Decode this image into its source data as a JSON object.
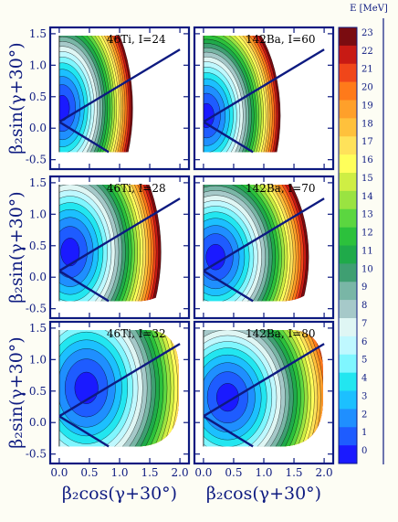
{
  "chart_data": {
    "type": "heatmap",
    "panels": [
      {
        "label": "46Ti, I=24",
        "row": 0,
        "col": 0,
        "cx": 0.05,
        "cy": 0.32,
        "sx": 0.62,
        "sy": 1.05
      },
      {
        "label": "142Ba, I=60",
        "row": 0,
        "col": 1,
        "cx": 0.05,
        "cy": 0.2,
        "sx": 0.65,
        "sy": 1.0
      },
      {
        "label": "46Ti, I=28",
        "row": 1,
        "col": 0,
        "cx": 0.18,
        "cy": 0.4,
        "sx": 0.8,
        "sy": 1.15
      },
      {
        "label": "142Ba, I=70",
        "row": 1,
        "col": 1,
        "cx": 0.2,
        "cy": 0.32,
        "sx": 0.82,
        "sy": 1.05
      },
      {
        "label": "46Ti, I=32",
        "row": 2,
        "col": 0,
        "cx": 0.45,
        "cy": 0.55,
        "sx": 1.0,
        "sy": 1.3
      },
      {
        "label": "142Ba, I=80",
        "row": 2,
        "col": 1,
        "cx": 0.4,
        "cy": 0.4,
        "sx": 0.95,
        "sy": 1.15
      }
    ],
    "xlabel": "β₂cos(γ+30°)",
    "ylabel": "β₂sin(γ+30°)",
    "xlim": [
      -0.15,
      2.15
    ],
    "ylim": [
      -0.65,
      1.6
    ],
    "xticks": [
      "0.0",
      "0.5",
      "1.0",
      "1.5",
      "2.0"
    ],
    "xtick_values": [
      0,
      0.5,
      1.0,
      1.5,
      2.0
    ],
    "yticks": [
      "-0.5",
      "0.0",
      "0.5",
      "1.0",
      "1.5"
    ],
    "ytick_values": [
      -0.5,
      0,
      0.5,
      1.0,
      1.5
    ],
    "colorbar": {
      "title": "E [MeV]",
      "min": 0,
      "max": 23,
      "labels": [
        "23",
        "22",
        "21",
        "20",
        "19",
        "18",
        "17",
        "16",
        "15",
        "14",
        "13",
        "12",
        "11",
        "10",
        "9",
        "8",
        "7",
        "6",
        "5",
        "4",
        "3",
        "2",
        "1",
        "0"
      ],
      "colors": [
        "#1a1aff",
        "#1e5cff",
        "#1f8fff",
        "#1cc0ff",
        "#22e6f0",
        "#7ff6ff",
        "#bff8ff",
        "#dff6f4",
        "#a6c9c9",
        "#79b6a6",
        "#3f9f72",
        "#1faa4a",
        "#2cc13c",
        "#5bd640",
        "#9ae341",
        "#cfee44",
        "#ffff5a",
        "#ffe25a",
        "#ffc13c",
        "#ffa02a",
        "#ff7a1a",
        "#f0461a",
        "#c81a14",
        "#7a0c10"
      ]
    }
  }
}
